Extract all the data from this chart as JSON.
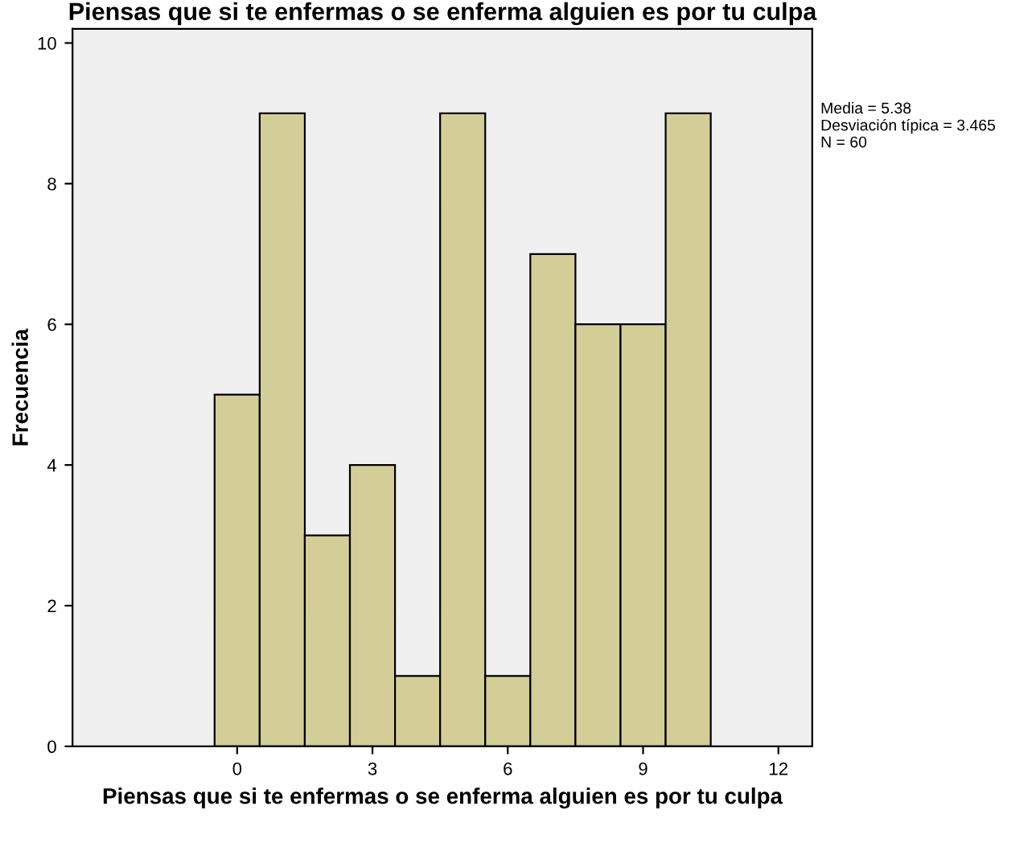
{
  "chart_data": {
    "type": "histogram",
    "title": "Piensas que si te enfermas o se enferma alguien es por tu culpa",
    "xlabel": "Piensas que si te enfermas o se enferma alguien es por tu culpa",
    "ylabel": "Frecuencia",
    "bins": [
      -0.5,
      0.5,
      1.5,
      2.5,
      3.5,
      4.5,
      5.5,
      6.5,
      7.5,
      8.5,
      9.5,
      10.5
    ],
    "values": [
      5,
      9,
      3,
      4,
      1,
      9,
      1,
      7,
      6,
      6,
      9
    ],
    "color": "#d3ce97",
    "xlim": [
      -3.65,
      12.75
    ],
    "xticks": [
      0,
      3,
      6,
      9,
      12
    ],
    "ylim": [
      0,
      10.2
    ],
    "yticks": [
      0,
      2,
      4,
      6,
      8,
      10
    ],
    "grid": false,
    "annotations": [
      "Media = 5.38\nDesviación típica = 3.465\nN = 60"
    ]
  }
}
